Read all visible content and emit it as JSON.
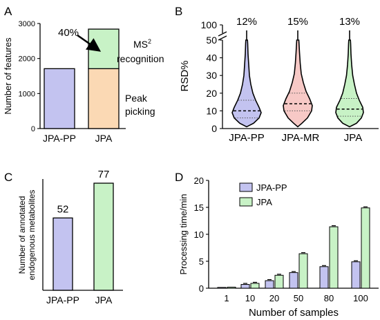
{
  "chart_data": [
    {
      "panel": "A",
      "type": "bar",
      "categories": [
        "JPA-PP",
        "JPA"
      ],
      "ylabel": "Number of features",
      "ylim": [
        0,
        3000
      ],
      "yticks": [
        "0",
        "1000",
        "2000",
        "3000"
      ],
      "series": [
        {
          "name": "Peak picking",
          "values": [
            1710,
            1710
          ]
        },
        {
          "name": "MS2 recognition",
          "values": [
            0,
            1130
          ]
        }
      ],
      "annotation": "40%",
      "label_ms": "MS",
      "label_ms_sup": "2",
      "label_recognition": "recognition",
      "label_peak": "Peak",
      "label_picking": "picking",
      "colors": {
        "jpa_pp": "#c3c3f0",
        "peak": "#fbd9b4",
        "ms2": "#c8f2c6"
      }
    },
    {
      "panel": "B",
      "type": "violin",
      "categories": [
        "JPA-PP",
        "JPA-MR",
        "JPA"
      ],
      "ylabel": "RSD%",
      "ylim_lower": [
        0,
        50
      ],
      "ylim_upper": [
        50,
        100
      ],
      "yticks": [
        "0",
        "10",
        "20",
        "30",
        "40",
        "50",
        "100"
      ],
      "medians": [
        10,
        14,
        11
      ],
      "top_labels": [
        "12%",
        "15%",
        "13%"
      ],
      "colors": [
        "#c3c3f0",
        "#f7c9c6",
        "#c8f2c6"
      ]
    },
    {
      "panel": "C",
      "type": "bar",
      "categories": [
        "JPA-PP",
        "JPA"
      ],
      "values": [
        52,
        77
      ],
      "data_labels": [
        "52",
        "77"
      ],
      "ylabel_line1": "Number of annotated",
      "ylabel_line2": "endogenous metabolites",
      "ylim": [
        0,
        80
      ],
      "colors": [
        "#c3c3f0",
        "#c8f2c6"
      ]
    },
    {
      "panel": "D",
      "type": "bar",
      "categories": [
        "1",
        "10",
        "20",
        "50",
        "80",
        "100"
      ],
      "xlabel": "Number of samples",
      "ylabel": "Processing time/min",
      "ylim": [
        0,
        20
      ],
      "yticks": [
        "0",
        "5",
        "10",
        "15",
        "20"
      ],
      "series": [
        {
          "name": "JPA-PP",
          "values": [
            0.15,
            0.7,
            1.4,
            2.9,
            4.0,
            4.9
          ]
        },
        {
          "name": "JPA",
          "values": [
            0.2,
            0.9,
            2.4,
            6.4,
            11.4,
            14.9
          ]
        }
      ],
      "colors": [
        "#c3c3f0",
        "#c8f2c6"
      ]
    }
  ],
  "panel_letters": [
    "A",
    "B",
    "C",
    "D"
  ]
}
